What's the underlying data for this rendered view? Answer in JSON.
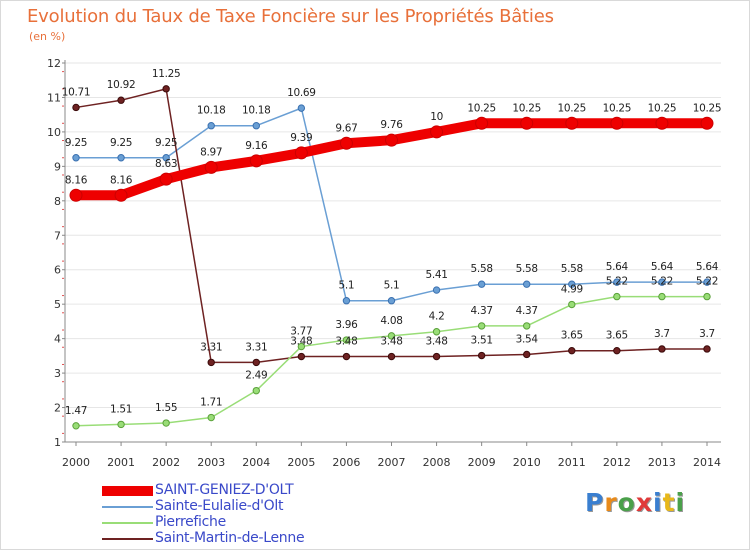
{
  "title": "Evolution du Taux de Taxe Foncière sur les Propriétés Bâties",
  "unit": "(en %)",
  "logo_text": "Proxiti",
  "chart_data": {
    "type": "line",
    "title": "Evolution du Taux de Taxe Foncière sur les Propriétés Bâties",
    "ylabel": "(en %)",
    "xlabel": "",
    "x": [
      "2000",
      "2001",
      "2002",
      "2003",
      "2004",
      "2005",
      "2006",
      "2007",
      "2008",
      "2009",
      "2010",
      "2011",
      "2012",
      "2013",
      "2014"
    ],
    "ylim": [
      1,
      12
    ],
    "yticks": [
      1,
      2,
      3,
      4,
      5,
      6,
      7,
      8,
      9,
      10,
      11,
      12
    ],
    "series": [
      {
        "name": "SAINT-GENIEZ-D'OLT",
        "color": "#ee0000",
        "values": [
          8.16,
          8.16,
          8.63,
          8.97,
          9.16,
          9.39,
          9.67,
          9.76,
          10,
          10.25,
          10.25,
          10.25,
          10.25,
          10.25,
          10.25
        ],
        "labels": [
          "8.16",
          "8.16",
          "8.63",
          "8.97",
          "9.16",
          "9.39",
          "9.67",
          "9.76",
          "10",
          "10.25",
          "10.25",
          "10.25",
          "10.25",
          "10.25",
          "10.25"
        ]
      },
      {
        "name": "Sainte-Eulalie-d'Olt",
        "color": "#6a9fd4",
        "values": [
          9.25,
          9.25,
          9.25,
          10.18,
          10.18,
          10.69,
          5.1,
          5.1,
          5.41,
          5.58,
          5.58,
          5.58,
          5.64,
          5.64,
          5.64
        ],
        "labels": [
          "9.25",
          "9.25",
          "9.25",
          "10.18",
          "10.18",
          "10.69",
          "5.1",
          "5.1",
          "5.41",
          "5.58",
          "5.58",
          "5.58",
          "5.64",
          "5.64",
          "5.64"
        ]
      },
      {
        "name": "Pierrefiche",
        "color": "#99dd77",
        "values": [
          1.47,
          1.51,
          1.55,
          1.71,
          2.49,
          3.77,
          3.96,
          4.08,
          4.2,
          4.37,
          4.37,
          4.99,
          5.22,
          5.22,
          5.22
        ],
        "labels": [
          "1.47",
          "1.51",
          "1.55",
          "1.71",
          "2.49",
          "3.77",
          "3.96",
          "4.08",
          "4.2",
          "4.37",
          "4.37",
          "4.99",
          "5.22",
          "5.22",
          "5.22"
        ]
      },
      {
        "name": "Saint-Martin-de-Lenne",
        "color": "#6e2222",
        "values": [
          10.71,
          10.92,
          11.25,
          3.31,
          3.31,
          3.48,
          3.48,
          3.48,
          3.48,
          3.51,
          3.54,
          3.65,
          3.65,
          3.7,
          3.7
        ],
        "labels": [
          "10.71",
          "10.92",
          "11.25",
          "3.31",
          "3.31",
          "3.48",
          "3.48",
          "3.48",
          "3.48",
          "3.51",
          "3.54",
          "3.65",
          "3.65",
          "3.7",
          "3.7"
        ]
      }
    ],
    "legend": "bottom-left"
  }
}
